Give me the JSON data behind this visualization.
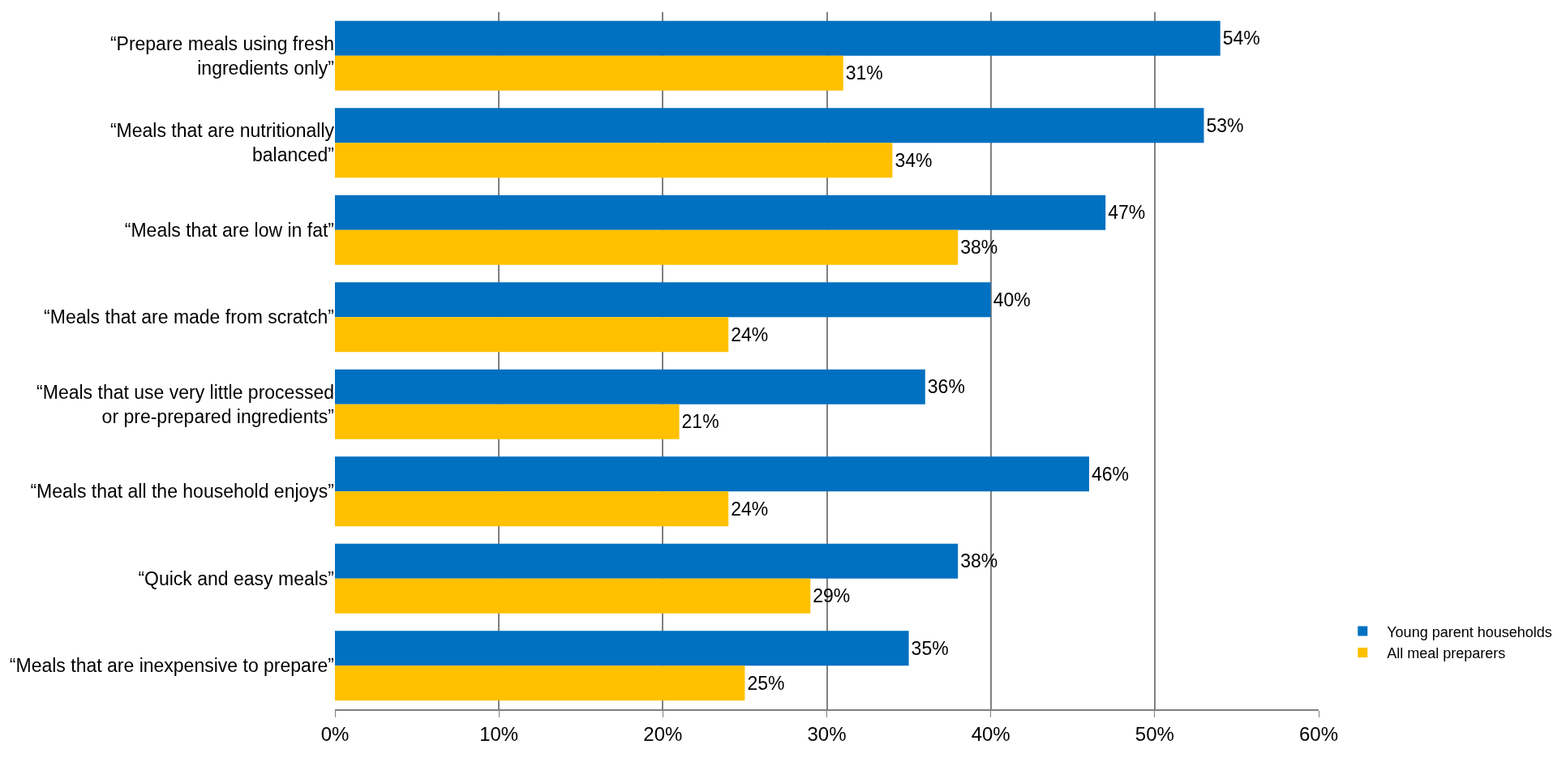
{
  "chart_data": {
    "type": "bar",
    "orientation": "horizontal",
    "categories": [
      "“Prepare meals using fresh\ningredients only”",
      "“Meals that are nutritionally\nbalanced”",
      "“Meals that are low in fat”",
      "“Meals that are made from scratch”",
      "“Meals that use very little processed\nor pre-prepared ingredients”",
      "“Meals that all the household enjoys”",
      "“Quick and easy meals”",
      "“Meals that are inexpensive to prepare”"
    ],
    "series": [
      {
        "name": "Young parent households",
        "color": "#0070c0",
        "values": [
          54,
          53,
          47,
          40,
          36,
          46,
          38,
          35
        ],
        "value_labels": [
          "54%",
          "53%",
          "47%",
          "40%",
          "36%",
          "46%",
          "38%",
          "35%"
        ]
      },
      {
        "name": "All meal preparers",
        "color": "#ffc000",
        "values": [
          31,
          34,
          38,
          24,
          21,
          24,
          29,
          25
        ],
        "value_labels": [
          "31%",
          "34%",
          "38%",
          "24%",
          "21%",
          "24%",
          "29%",
          "25%"
        ]
      }
    ],
    "xlim": [
      0,
      60
    ],
    "xticks": [
      {
        "value": 0,
        "label": "0%"
      },
      {
        "value": 10,
        "label": "10%"
      },
      {
        "value": 20,
        "label": "20%"
      },
      {
        "value": 30,
        "label": "30%"
      },
      {
        "value": 40,
        "label": "40%"
      },
      {
        "value": 50,
        "label": "50%"
      },
      {
        "value": 60,
        "label": "60%"
      }
    ],
    "grid": "x",
    "legend": "bottom right"
  }
}
